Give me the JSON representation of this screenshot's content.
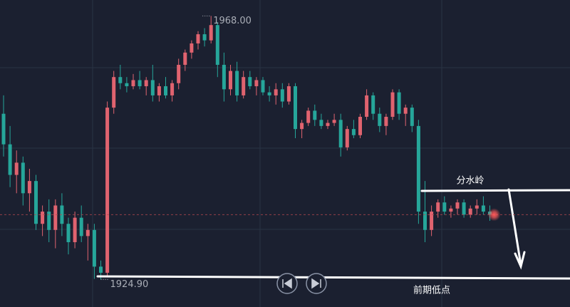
{
  "chart_data": {
    "type": "candlestick",
    "ylim": [
      1920.4,
      1970.6
    ],
    "up_color": "#e0636f",
    "down_color": "#26a69a",
    "high_label": "1968.00",
    "low_label": "1924.90",
    "annotations": [
      "分水岭",
      "前期低点"
    ],
    "ohlc": [
      [
        1952,
        1955,
        1945,
        1947
      ],
      [
        1947,
        1950,
        1940,
        1942
      ],
      [
        1942,
        1946,
        1939,
        1944
      ],
      [
        1944,
        1945,
        1937,
        1939
      ],
      [
        1939,
        1943,
        1936,
        1941
      ],
      [
        1941,
        1942,
        1933,
        1934
      ],
      [
        1934,
        1937,
        1932,
        1936
      ],
      [
        1936,
        1938,
        1931,
        1933
      ],
      [
        1933,
        1938,
        1930,
        1937
      ],
      [
        1937,
        1939,
        1932,
        1934
      ],
      [
        1934,
        1935,
        1929,
        1931
      ],
      [
        1931,
        1936,
        1930,
        1935
      ],
      [
        1935,
        1937,
        1931,
        1932
      ],
      [
        1932,
        1934,
        1928,
        1933
      ],
      [
        1933,
        1934,
        1925,
        1927
      ],
      [
        1927,
        1928,
        1924.9,
        1926
      ],
      [
        1926,
        1954,
        1925.5,
        1953
      ],
      [
        1953,
        1959,
        1952,
        1958
      ],
      [
        1958,
        1960,
        1956,
        1957
      ],
      [
        1957,
        1958,
        1955.5,
        1956.5
      ],
      [
        1956.5,
        1958.5,
        1956,
        1957.5
      ],
      [
        1957.5,
        1959,
        1956,
        1956.5
      ],
      [
        1956.5,
        1958,
        1955,
        1957.5
      ],
      [
        1957.5,
        1960,
        1954,
        1955
      ],
      [
        1955,
        1957,
        1954,
        1956.5
      ],
      [
        1956.5,
        1958,
        1954.5,
        1955
      ],
      [
        1955,
        1957.5,
        1954,
        1957
      ],
      [
        1957,
        1961,
        1956,
        1960
      ],
      [
        1960,
        1962.5,
        1959,
        1962
      ],
      [
        1962,
        1964,
        1961,
        1963.5
      ],
      [
        1963.5,
        1965.5,
        1962.5,
        1965
      ],
      [
        1965,
        1966,
        1963,
        1964
      ],
      [
        1964,
        1968,
        1963.5,
        1966.5
      ],
      [
        1966.5,
        1967,
        1958,
        1960
      ],
      [
        1960,
        1962,
        1954,
        1956
      ],
      [
        1956,
        1960,
        1955,
        1959
      ],
      [
        1959,
        1960.5,
        1954,
        1955
      ],
      [
        1955,
        1959,
        1954.5,
        1958
      ],
      [
        1958,
        1959,
        1956,
        1956.5
      ],
      [
        1956.5,
        1958,
        1955,
        1957.5
      ],
      [
        1957.5,
        1958,
        1955,
        1955.5
      ],
      [
        1955.5,
        1956.5,
        1954,
        1955
      ],
      [
        1955,
        1957,
        1953.5,
        1956
      ],
      [
        1956,
        1957,
        1953,
        1954
      ],
      [
        1954,
        1957,
        1953.5,
        1956.5
      ],
      [
        1956.5,
        1957,
        1948,
        1949.5
      ],
      [
        1949.5,
        1951,
        1948,
        1950.5
      ],
      [
        1950.5,
        1953,
        1950,
        1952.5
      ],
      [
        1952.5,
        1953.5,
        1950,
        1951
      ],
      [
        1951,
        1952,
        1949.5,
        1950
      ],
      [
        1950,
        1951,
        1949.5,
        1950.5
      ],
      [
        1950.5,
        1952,
        1950,
        1951
      ],
      [
        1951,
        1952,
        1945,
        1946.5
      ],
      [
        1946.5,
        1950,
        1946,
        1949.5
      ],
      [
        1949.5,
        1951,
        1948,
        1948.5
      ],
      [
        1948.5,
        1952,
        1948,
        1951.5
      ],
      [
        1951.5,
        1956,
        1951,
        1955
      ],
      [
        1955,
        1955.5,
        1951,
        1952
      ],
      [
        1952,
        1953,
        1949,
        1950
      ],
      [
        1950,
        1952,
        1948.5,
        1951.5
      ],
      [
        1951.5,
        1956,
        1951,
        1955.5
      ],
      [
        1955.5,
        1956,
        1951,
        1952
      ],
      [
        1952,
        1953.5,
        1950,
        1953
      ],
      [
        1953,
        1953.5,
        1949,
        1950
      ],
      [
        1950,
        1951,
        1934,
        1936
      ],
      [
        1936,
        1941,
        1931,
        1933
      ],
      [
        1933,
        1937,
        1932,
        1936
      ],
      [
        1936,
        1938,
        1935,
        1937.5
      ],
      [
        1937.5,
        1938.5,
        1935.5,
        1936
      ],
      [
        1936,
        1937,
        1935,
        1936.5
      ],
      [
        1936.5,
        1938,
        1935.5,
        1937.5
      ],
      [
        1937.5,
        1938,
        1935,
        1935.5
      ],
      [
        1935.5,
        1937,
        1935,
        1936.5
      ],
      [
        1936.5,
        1938,
        1935.5,
        1937
      ],
      [
        1937,
        1938.5,
        1935.5,
        1936
      ],
      [
        1936,
        1937,
        1934.5,
        1935.5
      ]
    ]
  }
}
